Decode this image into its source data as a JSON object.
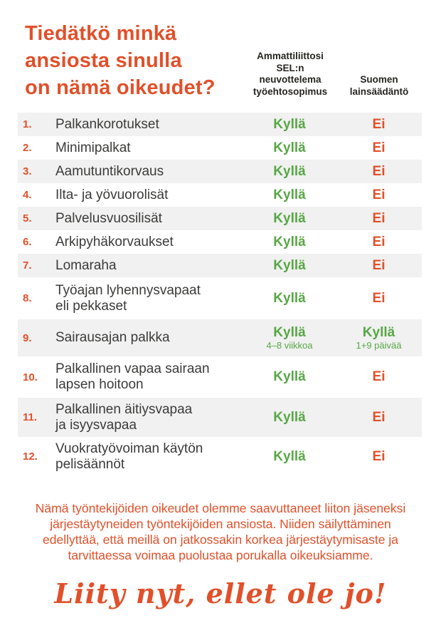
{
  "title": "Tiedätkö minkä\nansiosta sinulla\non nämä oikeudet?",
  "columns": {
    "union": "Ammattiliittosi\nSEL:n\nneuvottelema\ntyöehtosopimus",
    "law": "Suomen\nlainsäädäntö"
  },
  "table": {
    "rows": [
      {
        "num": "1.",
        "label": "Palkankorotukset",
        "union": "Kyllä",
        "law": "Ei"
      },
      {
        "num": "2.",
        "label": "Minimipalkat",
        "union": "Kyllä",
        "law": "Ei"
      },
      {
        "num": "3.",
        "label": "Aamutuntikorvaus",
        "union": "Kyllä",
        "law": "Ei"
      },
      {
        "num": "4.",
        "label": "Ilta- ja yövuorolisät",
        "union": "Kyllä",
        "law": "Ei"
      },
      {
        "num": "5.",
        "label": "Palvelusvuosilisät",
        "union": "Kyllä",
        "law": "Ei"
      },
      {
        "num": "6.",
        "label": "Arkipyhäkorvaukset",
        "union": "Kyllä",
        "law": "Ei"
      },
      {
        "num": "7.",
        "label": "Lomaraha",
        "union": "Kyllä",
        "law": "Ei"
      },
      {
        "num": "8.",
        "label": "Työajan lyhennysvapaat\neli pekkaset",
        "union": "Kyllä",
        "law": "Ei"
      },
      {
        "num": "9.",
        "label": "Sairausajan palkka",
        "union": "Kyllä",
        "union_note": "4–8 viikkoa",
        "law": "Kyllä",
        "law_note": "1+9 päivää"
      },
      {
        "num": "10.",
        "label": "Palkallinen vapaa sairaan\nlapsen hoitoon",
        "union": "Kyllä",
        "law": "Ei"
      },
      {
        "num": "11.",
        "label": "Palkallinen äitiysvapaa\nja isyysvapaa",
        "union": "Kyllä",
        "law": "Ei"
      },
      {
        "num": "12.",
        "label": "Vuokratyövoiman käytön\npelisäännöt",
        "union": "Kyllä",
        "law": "Ei"
      }
    ]
  },
  "footer": {
    "paragraph": "Nämä työntekijöiden oikeudet olemme saavuttaneet liiton jäseneksi\njärjestäytyneiden työntekijöiden ansiosta. Niiden säilyttäminen\nedellyttää, että meillä on jatkossakin korkea järjestäytymisaste ja\ntarvittaessa voimaa puolustaa porukalla oikeuksiamme.",
    "cta": "Liity nyt, ellet ole jo!"
  },
  "colors": {
    "orange": "#e1502a",
    "green": "#58a746",
    "stripe": "#f0f1f0",
    "label_text": "#3b3b3a",
    "header_text": "#272522"
  }
}
